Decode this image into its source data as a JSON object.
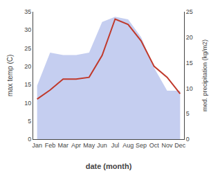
{
  "chart_data": {
    "type": "line",
    "categories": [
      "Jan",
      "Feb",
      "Mar",
      "Apr",
      "May",
      "Jun",
      "Jul",
      "Aug",
      "Sep",
      "Oct",
      "Nov",
      "Dec"
    ],
    "xlabel": "date (month)",
    "ylabel": "max temp (C)",
    "y2label": "med. precipitation (kg/m2)",
    "series": [
      {
        "type": "area",
        "axis": "y2",
        "color": "#c5cef0",
        "values": [
          10.5,
          17,
          16.5,
          16.5,
          17,
          23,
          24,
          23.5,
          20,
          14,
          9.5,
          9.5
        ]
      },
      {
        "type": "line",
        "color": "#c0392b",
        "values": [
          11,
          13.5,
          16.5,
          16.5,
          17,
          23,
          33,
          31.5,
          27,
          20,
          17,
          12.5
        ]
      }
    ],
    "ylim": [
      0,
      35
    ],
    "yticks": [
      0,
      5,
      10,
      15,
      20,
      25,
      30,
      35
    ],
    "y2lim": [
      0,
      25
    ],
    "y2ticks": [
      0,
      5,
      10,
      15,
      20,
      25
    ],
    "grid": false
  }
}
